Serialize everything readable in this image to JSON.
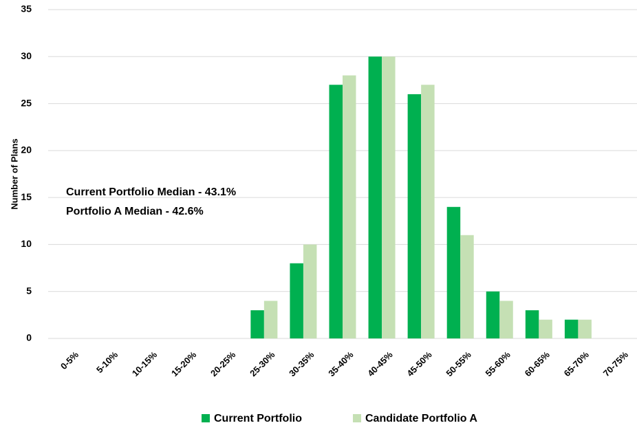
{
  "chart_data": {
    "type": "bar",
    "y_label": "Number of Plans",
    "annotations": [
      "Current Portfolio Median - 43.1%",
      "Portfolio A Median - 42.6%"
    ],
    "categories": [
      "0-5%",
      "5-10%",
      "10-15%",
      "15-20%",
      "20-25%",
      "25-30%",
      "30-35%",
      "35-40%",
      "40-45%",
      "45-50%",
      "50-55%",
      "55-60%",
      "60-65%",
      "65-70%",
      "70-75%"
    ],
    "series": [
      {
        "name": "Current Portfolio",
        "color": "#00b050",
        "values": [
          0,
          0,
          0,
          0,
          0,
          3,
          8,
          27,
          30,
          26,
          14,
          5,
          3,
          2,
          0
        ]
      },
      {
        "name": "Candidate Portfolio A",
        "color": "#c5e0b4",
        "values": [
          0,
          0,
          0,
          0,
          0,
          4,
          10,
          28,
          30,
          27,
          11,
          4,
          2,
          2,
          0
        ]
      }
    ],
    "ylim": [
      0,
      35
    ],
    "yticks": [
      0,
      5,
      10,
      15,
      20,
      25,
      30,
      35
    ],
    "grid": true,
    "legend": "bottom"
  }
}
